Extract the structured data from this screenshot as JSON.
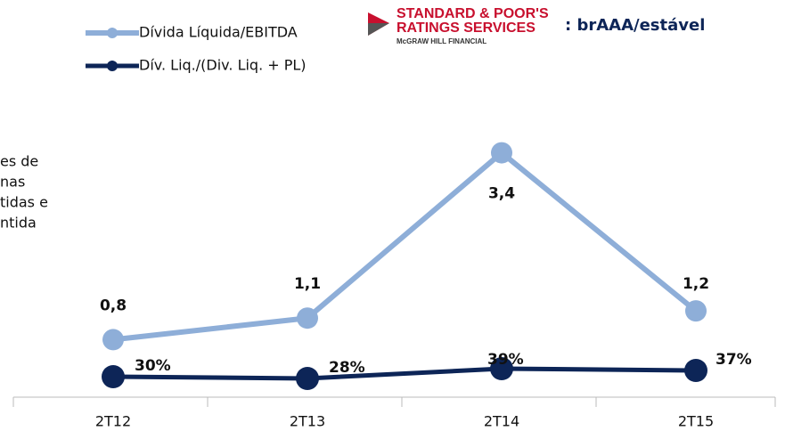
{
  "chart_data": {
    "type": "line",
    "categories": [
      "2T12",
      "2T13",
      "2T14",
      "2T15"
    ],
    "series": [
      {
        "name": "Dívida Líquida/EBITDA",
        "color": "#8eaed8",
        "values": [
          0.8,
          1.1,
          3.4,
          1.2
        ],
        "value_labels": [
          "0,8",
          "1,1",
          "3,4",
          "1,2"
        ]
      },
      {
        "name": "Dív. Liq./(Div. Liq. + PL)",
        "color": "#0d2557",
        "axis": "y2",
        "values": [
          30,
          28,
          39,
          37
        ],
        "value_labels": [
          "30%",
          "28%",
          "39%",
          "37%"
        ]
      }
    ],
    "ylim": [
      0,
      4.2
    ],
    "y2lim": [
      7,
      346
    ],
    "logo": {
      "line1": "STANDARD & POOR'S",
      "line2": "RATINGS SERVICES",
      "line3": "McGRAW HILL FINANCIAL"
    },
    "rating": ": brAAA/estável",
    "side_text": [
      "es de",
      "nas",
      "tidas e",
      "ntida"
    ]
  }
}
